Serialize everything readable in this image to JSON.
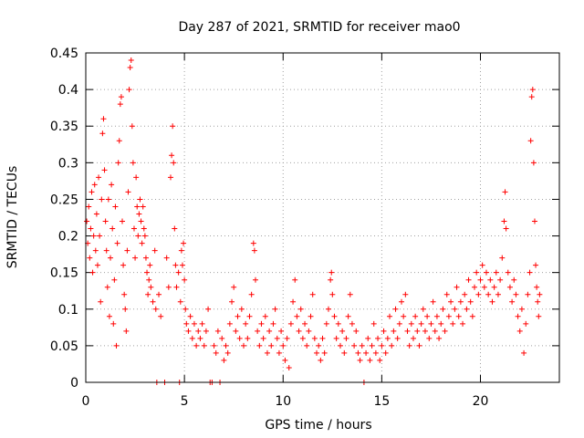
{
  "chart_data": {
    "type": "scatter",
    "title": "Day 287 of 2021, SRMTID for receiver mao0",
    "xlabel": "GPS time / hours",
    "ylabel": "SRMTID / TECUs",
    "xlim": [
      0,
      24
    ],
    "ylim": [
      0,
      0.45
    ],
    "xticks": [
      0,
      5,
      10,
      15,
      20
    ],
    "xtick_labels": [
      "0",
      "5",
      "10",
      "15",
      "20"
    ],
    "yticks": [
      0,
      0.05,
      0.1,
      0.15,
      0.2,
      0.25,
      0.3,
      0.35,
      0.4,
      0.45
    ],
    "ytick_labels": [
      "0",
      "0.05",
      "0.1",
      "0.15",
      "0.2",
      "0.25",
      "0.3",
      "0.35",
      "0.4",
      "0.45"
    ],
    "grid": true,
    "marker": "+",
    "series_color": "#ff0000",
    "series": [
      {
        "name": "SRMTID",
        "points": [
          [
            0.05,
            0.22
          ],
          [
            0.1,
            0.19
          ],
          [
            0.15,
            0.24
          ],
          [
            0.2,
            0.17
          ],
          [
            0.25,
            0.21
          ],
          [
            0.3,
            0.26
          ],
          [
            0.35,
            0.15
          ],
          [
            0.4,
            0.2
          ],
          [
            0.45,
            0.27
          ],
          [
            0.5,
            0.18
          ],
          [
            0.55,
            0.23
          ],
          [
            0.6,
            0.16
          ],
          [
            0.65,
            0.28
          ],
          [
            0.7,
            0.2
          ],
          [
            0.75,
            0.11
          ],
          [
            0.8,
            0.25
          ],
          [
            0.85,
            0.34
          ],
          [
            0.9,
            0.36
          ],
          [
            0.95,
            0.29
          ],
          [
            1.0,
            0.22
          ],
          [
            1.05,
            0.18
          ],
          [
            1.1,
            0.13
          ],
          [
            1.15,
            0.25
          ],
          [
            1.2,
            0.09
          ],
          [
            1.25,
            0.17
          ],
          [
            1.3,
            0.27
          ],
          [
            1.35,
            0.21
          ],
          [
            1.4,
            0.08
          ],
          [
            1.45,
            0.14
          ],
          [
            1.5,
            0.24
          ],
          [
            1.55,
            0.05
          ],
          [
            1.6,
            0.19
          ],
          [
            1.65,
            0.3
          ],
          [
            1.7,
            0.33
          ],
          [
            1.75,
            0.38
          ],
          [
            1.8,
            0.39
          ],
          [
            1.85,
            0.22
          ],
          [
            1.9,
            0.16
          ],
          [
            1.95,
            0.12
          ],
          [
            2.0,
            0.1
          ],
          [
            2.05,
            0.07
          ],
          [
            2.1,
            0.18
          ],
          [
            2.15,
            0.26
          ],
          [
            2.2,
            0.4
          ],
          [
            2.25,
            0.43
          ],
          [
            2.3,
            0.44
          ],
          [
            2.35,
            0.35
          ],
          [
            2.4,
            0.3
          ],
          [
            2.45,
            0.21
          ],
          [
            2.5,
            0.17
          ],
          [
            2.55,
            0.28
          ],
          [
            2.6,
            0.24
          ],
          [
            2.65,
            0.2
          ],
          [
            2.7,
            0.23
          ],
          [
            2.75,
            0.25
          ],
          [
            2.8,
            0.22
          ],
          [
            2.85,
            0.19
          ],
          [
            2.9,
            0.24
          ],
          [
            2.95,
            0.21
          ],
          [
            3.0,
            0.2
          ],
          [
            3.05,
            0.17
          ],
          [
            3.1,
            0.15
          ],
          [
            3.15,
            0.12
          ],
          [
            3.2,
            0.14
          ],
          [
            3.25,
            0.16
          ],
          [
            3.3,
            0.13
          ],
          [
            3.4,
            0.11
          ],
          [
            3.5,
            0.18
          ],
          [
            3.55,
            0.1
          ],
          [
            3.6,
            0.0
          ],
          [
            3.7,
            0.12
          ],
          [
            3.8,
            0.09
          ],
          [
            4.0,
            0.0
          ],
          [
            4.1,
            0.17
          ],
          [
            4.2,
            0.13
          ],
          [
            4.3,
            0.28
          ],
          [
            4.35,
            0.31
          ],
          [
            4.4,
            0.35
          ],
          [
            4.45,
            0.3
          ],
          [
            4.5,
            0.21
          ],
          [
            4.55,
            0.16
          ],
          [
            4.6,
            0.13
          ],
          [
            4.7,
            0.15
          ],
          [
            4.75,
            0.0
          ],
          [
            4.8,
            0.11
          ],
          [
            4.85,
            0.18
          ],
          [
            4.9,
            0.16
          ],
          [
            4.95,
            0.19
          ],
          [
            5.0,
            0.14
          ],
          [
            5.05,
            0.1
          ],
          [
            5.1,
            0.08
          ],
          [
            5.2,
            0.07
          ],
          [
            5.3,
            0.09
          ],
          [
            5.4,
            0.06
          ],
          [
            5.5,
            0.08
          ],
          [
            5.6,
            0.05
          ],
          [
            5.7,
            0.07
          ],
          [
            5.8,
            0.06
          ],
          [
            5.9,
            0.08
          ],
          [
            6.0,
            0.05
          ],
          [
            6.1,
            0.07
          ],
          [
            6.2,
            0.1
          ],
          [
            6.3,
            0.0
          ],
          [
            6.4,
            0.0
          ],
          [
            6.5,
            0.05
          ],
          [
            6.6,
            0.04
          ],
          [
            6.7,
            0.07
          ],
          [
            6.8,
            0.0
          ],
          [
            6.9,
            0.06
          ],
          [
            7.0,
            0.03
          ],
          [
            7.1,
            0.05
          ],
          [
            7.2,
            0.04
          ],
          [
            7.3,
            0.08
          ],
          [
            7.4,
            0.11
          ],
          [
            7.5,
            0.13
          ],
          [
            7.6,
            0.07
          ],
          [
            7.7,
            0.09
          ],
          [
            7.8,
            0.06
          ],
          [
            7.9,
            0.1
          ],
          [
            8.0,
            0.05
          ],
          [
            8.1,
            0.08
          ],
          [
            8.2,
            0.06
          ],
          [
            8.3,
            0.09
          ],
          [
            8.4,
            0.12
          ],
          [
            8.5,
            0.19
          ],
          [
            8.55,
            0.18
          ],
          [
            8.6,
            0.14
          ],
          [
            8.7,
            0.07
          ],
          [
            8.8,
            0.05
          ],
          [
            8.9,
            0.08
          ],
          [
            9.0,
            0.06
          ],
          [
            9.1,
            0.09
          ],
          [
            9.2,
            0.04
          ],
          [
            9.3,
            0.07
          ],
          [
            9.4,
            0.05
          ],
          [
            9.5,
            0.08
          ],
          [
            9.6,
            0.1
          ],
          [
            9.7,
            0.06
          ],
          [
            9.8,
            0.04
          ],
          [
            9.9,
            0.07
          ],
          [
            10.0,
            0.05
          ],
          [
            10.1,
            0.03
          ],
          [
            10.2,
            0.06
          ],
          [
            10.3,
            0.02
          ],
          [
            10.4,
            0.08
          ],
          [
            10.5,
            0.11
          ],
          [
            10.6,
            0.14
          ],
          [
            10.7,
            0.09
          ],
          [
            10.8,
            0.07
          ],
          [
            10.9,
            0.1
          ],
          [
            11.0,
            0.06
          ],
          [
            11.1,
            0.08
          ],
          [
            11.2,
            0.05
          ],
          [
            11.3,
            0.07
          ],
          [
            11.4,
            0.09
          ],
          [
            11.5,
            0.12
          ],
          [
            11.6,
            0.06
          ],
          [
            11.7,
            0.04
          ],
          [
            11.8,
            0.05
          ],
          [
            11.9,
            0.03
          ],
          [
            12.0,
            0.06
          ],
          [
            12.1,
            0.04
          ],
          [
            12.2,
            0.08
          ],
          [
            12.3,
            0.1
          ],
          [
            12.4,
            0.14
          ],
          [
            12.45,
            0.15
          ],
          [
            12.5,
            0.12
          ],
          [
            12.6,
            0.09
          ],
          [
            12.7,
            0.06
          ],
          [
            12.8,
            0.08
          ],
          [
            12.9,
            0.05
          ],
          [
            13.0,
            0.07
          ],
          [
            13.1,
            0.04
          ],
          [
            13.2,
            0.06
          ],
          [
            13.3,
            0.09
          ],
          [
            13.4,
            0.12
          ],
          [
            13.5,
            0.08
          ],
          [
            13.6,
            0.05
          ],
          [
            13.7,
            0.07
          ],
          [
            13.8,
            0.04
          ],
          [
            13.9,
            0.03
          ],
          [
            14.0,
            0.05
          ],
          [
            14.1,
            0.0
          ],
          [
            14.2,
            0.04
          ],
          [
            14.3,
            0.06
          ],
          [
            14.4,
            0.03
          ],
          [
            14.5,
            0.05
          ],
          [
            14.6,
            0.08
          ],
          [
            14.7,
            0.04
          ],
          [
            14.8,
            0.06
          ],
          [
            14.9,
            0.03
          ],
          [
            15.0,
            0.05
          ],
          [
            15.1,
            0.07
          ],
          [
            15.2,
            0.04
          ],
          [
            15.3,
            0.06
          ],
          [
            15.4,
            0.09
          ],
          [
            15.5,
            0.05
          ],
          [
            15.6,
            0.07
          ],
          [
            15.7,
            0.1
          ],
          [
            15.8,
            0.06
          ],
          [
            15.9,
            0.08
          ],
          [
            16.0,
            0.11
          ],
          [
            16.1,
            0.09
          ],
          [
            16.2,
            0.12
          ],
          [
            16.3,
            0.07
          ],
          [
            16.4,
            0.05
          ],
          [
            16.5,
            0.08
          ],
          [
            16.6,
            0.06
          ],
          [
            16.7,
            0.09
          ],
          [
            16.8,
            0.07
          ],
          [
            16.9,
            0.05
          ],
          [
            17.0,
            0.08
          ],
          [
            17.1,
            0.1
          ],
          [
            17.2,
            0.07
          ],
          [
            17.3,
            0.09
          ],
          [
            17.4,
            0.06
          ],
          [
            17.5,
            0.08
          ],
          [
            17.6,
            0.11
          ],
          [
            17.7,
            0.07
          ],
          [
            17.8,
            0.09
          ],
          [
            17.9,
            0.06
          ],
          [
            18.0,
            0.08
          ],
          [
            18.1,
            0.1
          ],
          [
            18.2,
            0.07
          ],
          [
            18.3,
            0.12
          ],
          [
            18.4,
            0.09
          ],
          [
            18.5,
            0.11
          ],
          [
            18.6,
            0.08
          ],
          [
            18.7,
            0.1
          ],
          [
            18.8,
            0.13
          ],
          [
            18.9,
            0.09
          ],
          [
            19.0,
            0.11
          ],
          [
            19.1,
            0.08
          ],
          [
            19.2,
            0.12
          ],
          [
            19.3,
            0.1
          ],
          [
            19.4,
            0.14
          ],
          [
            19.5,
            0.11
          ],
          [
            19.6,
            0.09
          ],
          [
            19.7,
            0.13
          ],
          [
            19.8,
            0.15
          ],
          [
            19.9,
            0.12
          ],
          [
            20.0,
            0.14
          ],
          [
            20.1,
            0.16
          ],
          [
            20.2,
            0.13
          ],
          [
            20.3,
            0.15
          ],
          [
            20.4,
            0.12
          ],
          [
            20.5,
            0.14
          ],
          [
            20.6,
            0.11
          ],
          [
            20.7,
            0.13
          ],
          [
            20.8,
            0.15
          ],
          [
            20.9,
            0.12
          ],
          [
            21.0,
            0.14
          ],
          [
            21.1,
            0.17
          ],
          [
            21.2,
            0.22
          ],
          [
            21.25,
            0.26
          ],
          [
            21.3,
            0.21
          ],
          [
            21.4,
            0.15
          ],
          [
            21.5,
            0.13
          ],
          [
            21.6,
            0.11
          ],
          [
            21.7,
            0.14
          ],
          [
            21.8,
            0.12
          ],
          [
            21.9,
            0.09
          ],
          [
            22.0,
            0.07
          ],
          [
            22.1,
            0.1
          ],
          [
            22.2,
            0.04
          ],
          [
            22.3,
            0.08
          ],
          [
            22.4,
            0.12
          ],
          [
            22.5,
            0.15
          ],
          [
            22.55,
            0.33
          ],
          [
            22.6,
            0.39
          ],
          [
            22.65,
            0.4
          ],
          [
            22.7,
            0.3
          ],
          [
            22.75,
            0.22
          ],
          [
            22.8,
            0.16
          ],
          [
            22.85,
            0.13
          ],
          [
            22.9,
            0.11
          ],
          [
            22.95,
            0.09
          ],
          [
            23.0,
            0.12
          ]
        ]
      }
    ]
  }
}
